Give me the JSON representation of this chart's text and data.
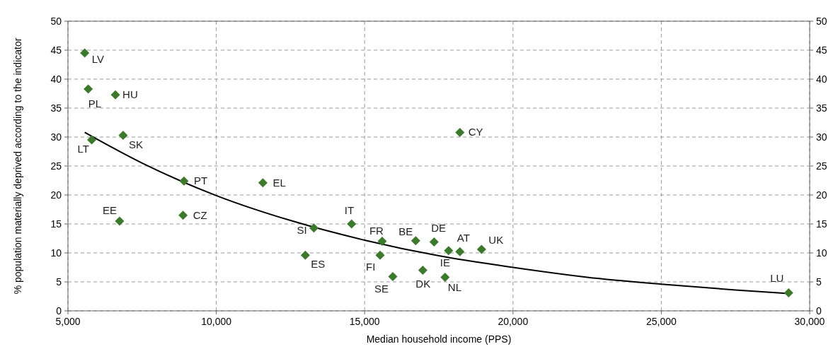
{
  "chart_data": {
    "type": "scatter",
    "xlabel": "Median household income (PPS)",
    "ylabel": "% population materially deprived according to the indicator",
    "xlim": [
      5000,
      30000
    ],
    "xticks": [
      {
        "value": 5000,
        "label": "5,000"
      },
      {
        "value": 10000,
        "label": "10,000"
      },
      {
        "value": 15000,
        "label": "15,000"
      },
      {
        "value": 20000,
        "label": "20,000"
      },
      {
        "value": 25000,
        "label": "25,000"
      },
      {
        "value": 30000,
        "label": "30,000"
      }
    ],
    "ylim": [
      0,
      50
    ],
    "yticks": [
      0,
      5,
      10,
      15,
      20,
      25,
      30,
      35,
      40,
      45,
      50
    ],
    "y2lim": [
      0,
      50
    ],
    "y2ticks": [
      0,
      5,
      10,
      15,
      20,
      25,
      30,
      35,
      40,
      45,
      50
    ],
    "grid": true,
    "series": [
      {
        "marker": "diamond",
        "color": "#3a7a2a",
        "x": [
          5565,
          5683,
          6600,
          6860,
          5800,
          8910,
          11570,
          6740,
          8880,
          14560,
          13290,
          13000,
          15590,
          15520,
          15950,
          16720,
          17340,
          16960,
          17830,
          17710,
          18210,
          18940,
          18210,
          29290
        ],
        "values": [
          44.5,
          38.3,
          37.3,
          30.3,
          29.5,
          22.4,
          22.1,
          15.5,
          16.5,
          15.0,
          14.3,
          9.6,
          12.0,
          9.6,
          5.9,
          12.1,
          11.9,
          7.0,
          10.4,
          5.8,
          10.2,
          10.6,
          30.8,
          3.1
        ],
        "value_labels": [
          "LV",
          "PL",
          "HU",
          "SK",
          "LT",
          "PT",
          "EL",
          "EE",
          "CZ",
          "IT",
          "SI",
          "ES",
          "FR",
          "FI",
          "SE",
          "BE",
          "DE",
          "DK",
          "IE",
          "NL",
          "AT",
          "UK",
          "CY",
          "LU"
        ]
      },
      {
        "type": "line",
        "color": "#000000",
        "line_style": "solid",
        "x": [
          5565,
          7500,
          10000,
          12500,
          15000,
          17500,
          20000,
          22500,
          25000,
          27500,
          29290
        ],
        "values": [
          30.8,
          25.5,
          19.9,
          15.6,
          12.2,
          9.5,
          7.5,
          5.8,
          4.6,
          3.6,
          3.0
        ]
      }
    ]
  }
}
